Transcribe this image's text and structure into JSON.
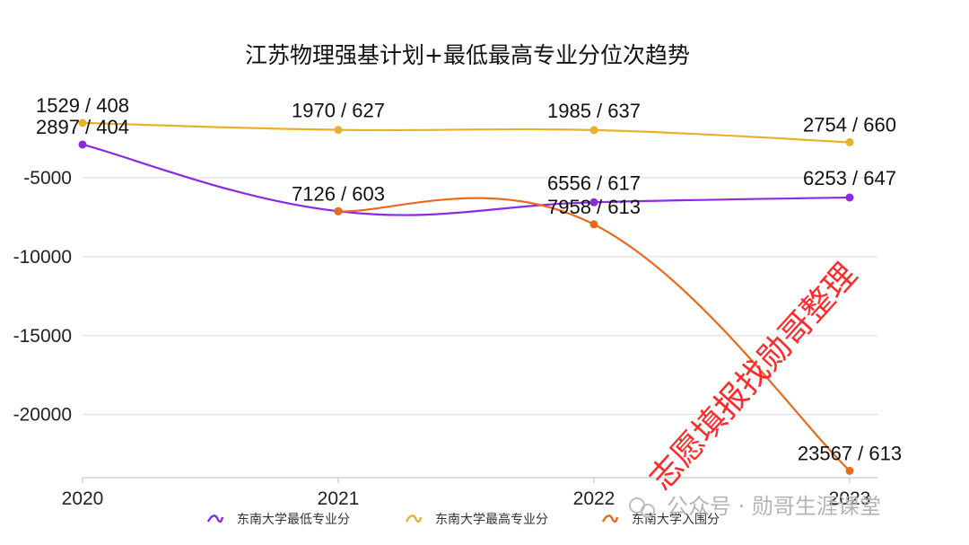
{
  "chart_data": {
    "type": "line",
    "title": "江苏物理强基计划+最低最高专业分位次趋势",
    "categories": [
      "2020",
      "2021",
      "2022",
      "2023"
    ],
    "ylim": [
      -24000,
      0
    ],
    "yticks": [
      -5000,
      -10000,
      -15000,
      -20000
    ],
    "grid": true,
    "legend_position": "bottom",
    "series": [
      {
        "name": "东南大学最低专业分",
        "color": "#8a2be2",
        "values": [
          -2897,
          -7126,
          -6556,
          -6253
        ],
        "labels": [
          "2897 / 404",
          "",
          "6556 / 617",
          "6253 / 647"
        ]
      },
      {
        "name": "东南大学最高专业分",
        "color": "#e8b12c",
        "values": [
          -1529,
          -1970,
          -1985,
          -2754
        ],
        "labels": [
          "1529 / 408",
          "1970 / 627",
          "1985 / 637",
          "2754 / 660"
        ]
      },
      {
        "name": "东南大学入围分",
        "color": "#ea6a1b",
        "values": [
          null,
          -7126,
          -7958,
          -23567
        ],
        "labels": [
          "",
          "7126 / 603",
          "7958 / 613",
          "23567 / 613"
        ]
      }
    ]
  },
  "watermark": {
    "text": "志愿填报找勋哥整理",
    "color": "#ff2a2a"
  },
  "account_badge": {
    "text": "公众号 · 勋哥生涯课堂",
    "icon": "wechat-icon"
  }
}
